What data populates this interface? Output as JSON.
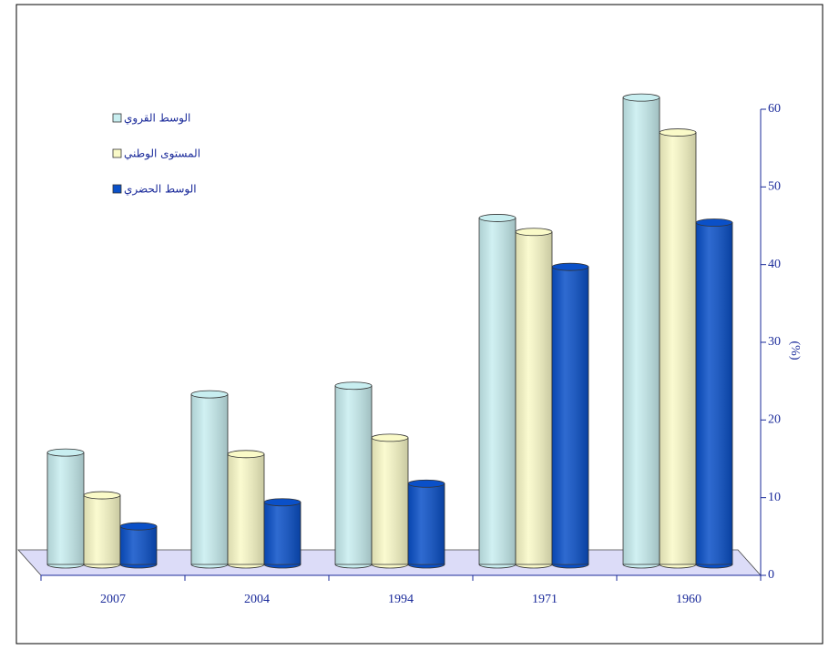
{
  "chart_data": {
    "type": "bar3d",
    "categories": [
      "2007",
      "2004",
      "1994",
      "1971",
      "1960"
    ],
    "series": [
      {
        "name": "الوسط القروي",
        "color": "#c8eef0",
        "values": [
          14.4,
          21.9,
          23.0,
          44.6,
          60.1
        ]
      },
      {
        "name": "المستوى الوطني",
        "color": "#fafac8",
        "values": [
          8.9,
          14.2,
          16.3,
          42.8,
          55.6
        ]
      },
      {
        "name": "الوسط الحضري",
        "color": "#0a50c8",
        "values": [
          4.9,
          8.0,
          10.4,
          38.3,
          44.0
        ]
      }
    ],
    "y_label": "(%)",
    "ylim": [
      0,
      60
    ],
    "yticks": [
      0,
      10,
      20,
      30,
      40,
      50,
      60
    ]
  }
}
